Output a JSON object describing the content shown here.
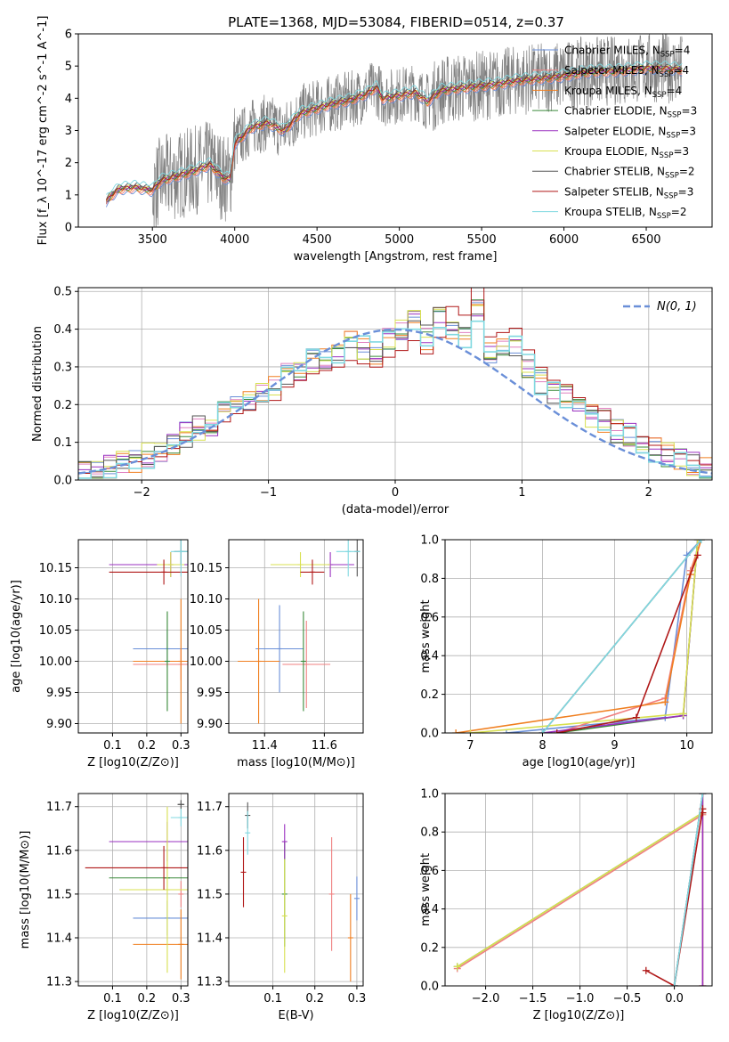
{
  "title": "PLATE=1368, MJD=53084, FIBERID=0514, z=0.37",
  "colors": {
    "Chabrier MILES": "#6a8fd8",
    "Salpeter MILES": "#f08080",
    "Kroupa MILES": "#f07f20",
    "Chabrier ELODIE": "#3a8a3a",
    "Salpeter ELODIE": "#9a30c0",
    "Kroupa ELODIE": "#d8e050",
    "Chabrier STELIB": "#555555",
    "Salpeter STELIB": "#b01818",
    "Kroupa STELIB": "#80d8e0",
    "data": "#808080",
    "gauss": "#6a8fd8",
    "salpeter_miles_hist": "#e080c0"
  },
  "chart_data": [
    {
      "id": "spectrum",
      "type": "line",
      "xlabel": "wavelength [Angstrom, rest frame]",
      "ylabel": "Flux [f_λ 10^-17 erg cm^-2 s^-1 A^-1]",
      "xlim": [
        3050,
        6900
      ],
      "ylim": [
        0,
        6
      ],
      "xticks": [
        3500,
        4000,
        4500,
        5000,
        5500,
        6000,
        6500
      ],
      "yticks": [
        0,
        1,
        2,
        3,
        4,
        5,
        6
      ],
      "legend_position": "right",
      "legend": [
        {
          "label": "Chabrier MILES, N_SSP=4",
          "color_key": "Chabrier MILES"
        },
        {
          "label": "Salpeter MILES, N_SSP=4",
          "color_key": "Salpeter MILES"
        },
        {
          "label": "Kroupa MILES, N_SSP=4",
          "color_key": "Kroupa MILES"
        },
        {
          "label": "Chabrier ELODIE, N_SSP=3",
          "color_key": "Chabrier ELODIE"
        },
        {
          "label": "Salpeter ELODIE, N_SSP=3",
          "color_key": "Salpeter ELODIE"
        },
        {
          "label": "Kroupa ELODIE, N_SSP=3",
          "color_key": "Kroupa ELODIE"
        },
        {
          "label": "Chabrier STELIB, N_SSP=2",
          "color_key": "Chabrier STELIB"
        },
        {
          "label": "Salpeter STELIB, N_SSP=3",
          "color_key": "Salpeter STELIB"
        },
        {
          "label": "Kroupa STELIB, N_SSP=2",
          "color_key": "Kroupa STELIB"
        }
      ],
      "model_shape": {
        "x": [
          3220,
          3250,
          3300,
          3400,
          3500,
          3550,
          3650,
          3750,
          3850,
          3930,
          3970,
          4000,
          4100,
          4200,
          4300,
          4400,
          4500,
          4600,
          4700,
          4800,
          4860,
          4900,
          5000,
          5100,
          5170,
          5250,
          5400,
          5500,
          5600,
          5700,
          5800,
          5900,
          6000,
          6100,
          6200,
          6300,
          6400,
          6500,
          6600,
          6720
        ],
        "y": [
          0.8,
          1.0,
          1.2,
          1.25,
          1.15,
          1.45,
          1.6,
          1.75,
          1.95,
          1.55,
          1.5,
          2.6,
          3.1,
          3.25,
          3.0,
          3.55,
          3.7,
          3.85,
          3.95,
          4.15,
          4.35,
          4.0,
          4.1,
          4.2,
          3.9,
          4.25,
          4.35,
          4.4,
          4.45,
          4.55,
          4.6,
          4.65,
          4.7,
          4.8,
          4.85,
          4.85,
          4.9,
          4.95,
          4.95,
          4.9
        ]
      },
      "data_range": [
        3220,
        6720
      ]
    },
    {
      "id": "residuals",
      "type": "line",
      "xlabel": "(data-model)/error",
      "ylabel": "Normed distribution",
      "xlim": [
        -2.5,
        2.5
      ],
      "ylim": [
        0,
        0.51
      ],
      "xticks": [
        -2,
        -1,
        0,
        1,
        2
      ],
      "yticks": [
        0.0,
        0.1,
        0.2,
        0.3,
        0.4,
        0.5
      ],
      "legend_label": "N(0, 1)",
      "legend_position": "top-right",
      "bin_edges": [
        -2.5,
        -2.4,
        -2.3,
        -2.2,
        -2.1,
        -2.0,
        -1.9,
        -1.8,
        -1.7,
        -1.6,
        -1.5,
        -1.4,
        -1.3,
        -1.2,
        -1.1,
        -1.0,
        -0.9,
        -0.8,
        -0.7,
        -0.6,
        -0.5,
        -0.4,
        -0.3,
        -0.2,
        -0.1,
        0.0,
        0.1,
        0.2,
        0.3,
        0.4,
        0.5,
        0.6,
        0.7,
        0.8,
        0.9,
        1.0,
        1.1,
        1.2,
        1.3,
        1.4,
        1.5,
        1.6,
        1.7,
        1.8,
        1.9,
        2.0,
        2.1,
        2.2,
        2.3,
        2.4,
        2.5
      ],
      "hist_base": [
        0.02,
        0.025,
        0.035,
        0.045,
        0.055,
        0.065,
        0.07,
        0.095,
        0.12,
        0.14,
        0.15,
        0.175,
        0.2,
        0.21,
        0.235,
        0.24,
        0.28,
        0.3,
        0.32,
        0.33,
        0.34,
        0.36,
        0.35,
        0.34,
        0.37,
        0.39,
        0.42,
        0.38,
        0.43,
        0.4,
        0.38,
        0.45,
        0.33,
        0.34,
        0.35,
        0.3,
        0.26,
        0.23,
        0.22,
        0.19,
        0.17,
        0.16,
        0.13,
        0.12,
        0.1,
        0.08,
        0.07,
        0.06,
        0.045,
        0.035
      ]
    },
    {
      "id": "age-vs-Z",
      "type": "scatter",
      "xlabel": "Z [log10(Z/Z⊙)]",
      "ylabel": "age  [log10(age/yr)]",
      "xlim": [
        0.0,
        0.32
      ],
      "ylim": [
        9.885,
        10.195
      ],
      "xticks": [
        0.1,
        0.2,
        0.3
      ],
      "yticks": [
        9.9,
        9.95,
        10.0,
        10.05,
        10.1,
        10.15
      ],
      "points": [
        {
          "key": "Chabrier MILES",
          "x": 0.26,
          "y": 10.02,
          "xerr": 0.1,
          "yerr": 0.03
        },
        {
          "key": "Salpeter MILES",
          "x": 0.3,
          "y": 9.995,
          "xerr": 0.14,
          "yerr": 0.025
        },
        {
          "key": "Kroupa MILES",
          "x": 0.3,
          "y": 10.0,
          "xerr": 0.14,
          "yerr": 0.1
        },
        {
          "key": "Chabrier ELODIE",
          "x": 0.26,
          "y": 10.0,
          "xerr": 0.0,
          "yerr": 0.08
        },
        {
          "key": "Salpeter ELODIE",
          "x": 0.27,
          "y": 10.155,
          "xerr": 0.18,
          "yerr": 0.02
        },
        {
          "key": "Kroupa ELODIE",
          "x": 0.27,
          "y": 10.155,
          "xerr": 0.04,
          "yerr": 0.02
        },
        {
          "key": "Chabrier STELIB",
          "x": 0.3,
          "y": 10.176,
          "xerr": 0.02,
          "yerr": 0.02
        },
        {
          "key": "Salpeter STELIB",
          "x": 0.25,
          "y": 10.143,
          "xerr": 0.16,
          "yerr": 0.02
        },
        {
          "key": "Kroupa STELIB",
          "x": 0.3,
          "y": 10.176,
          "xerr": 0.03,
          "yerr": 0.04
        }
      ]
    },
    {
      "id": "age-vs-mass",
      "type": "scatter",
      "xlabel": "mass [log10(M/M⊙)]",
      "ylabel": "",
      "xlim": [
        11.28,
        11.73
      ],
      "ylim": [
        9.885,
        10.195
      ],
      "xticks": [
        11.4,
        11.6
      ],
      "yticks": [
        9.9,
        9.95,
        10.0,
        10.05,
        10.1,
        10.15
      ],
      "points": [
        {
          "key": "Chabrier MILES",
          "x": 11.45,
          "y": 10.02,
          "xerr": 0.08,
          "yerr": 0.07
        },
        {
          "key": "Salpeter MILES",
          "x": 11.54,
          "y": 9.995,
          "xerr": 0.08,
          "yerr": 0.07
        },
        {
          "key": "Kroupa MILES",
          "x": 11.38,
          "y": 10.0,
          "xerr": 0.07,
          "yerr": 0.1
        },
        {
          "key": "Chabrier ELODIE",
          "x": 11.53,
          "y": 10.0,
          "xerr": 0.0,
          "yerr": 0.08
        },
        {
          "key": "Salpeter ELODIE",
          "x": 11.62,
          "y": 10.155,
          "xerr": 0.08,
          "yerr": 0.02
        },
        {
          "key": "Kroupa ELODIE",
          "x": 11.52,
          "y": 10.155,
          "xerr": 0.1,
          "yerr": 0.02
        },
        {
          "key": "Chabrier STELIB",
          "x": 11.71,
          "y": 10.176,
          "xerr": 0.0,
          "yerr": 0.04
        },
        {
          "key": "Salpeter STELIB",
          "x": 11.56,
          "y": 10.143,
          "xerr": 0.04,
          "yerr": 0.02
        },
        {
          "key": "Kroupa STELIB",
          "x": 11.68,
          "y": 10.176,
          "xerr": 0.04,
          "yerr": 0.04
        }
      ]
    },
    {
      "id": "massweight-vs-age",
      "type": "line",
      "xlabel": "age  [log10(age/yr)]",
      "ylabel": "mass weight",
      "xlim": [
        6.65,
        10.35
      ],
      "ylim": [
        0,
        1.0
      ],
      "xticks": [
        7,
        8,
        9,
        10
      ],
      "yticks": [
        0.0,
        0.2,
        0.4,
        0.6,
        0.8,
        1.0
      ],
      "series": [
        {
          "key": "Chabrier MILES",
          "x": [
            7.5,
            9.7,
            10.0,
            10.2
          ],
          "y": [
            0.0,
            0.08,
            0.92,
            1.0
          ]
        },
        {
          "key": "Salpeter MILES",
          "x": [
            8.2,
            9.7,
            10.05,
            10.2
          ],
          "y": [
            0.0,
            0.18,
            0.84,
            1.0
          ]
        },
        {
          "key": "Kroupa MILES",
          "x": [
            6.8,
            9.7,
            10.05,
            10.2
          ],
          "y": [
            0.0,
            0.16,
            0.82,
            1.0
          ]
        },
        {
          "key": "Chabrier ELODIE",
          "x": [
            8.2,
            9.95,
            10.15
          ],
          "y": [
            0.0,
            0.09,
            1.0
          ]
        },
        {
          "key": "Salpeter ELODIE",
          "x": [
            8.0,
            9.95,
            10.15
          ],
          "y": [
            0.0,
            0.09,
            1.0
          ]
        },
        {
          "key": "Kroupa ELODIE",
          "x": [
            7.0,
            9.95,
            10.15
          ],
          "y": [
            0.0,
            0.1,
            1.0
          ]
        },
        {
          "key": "Chabrier STELIB",
          "x": [
            8.0,
            10.2
          ],
          "y": [
            0.0,
            1.0
          ]
        },
        {
          "key": "Salpeter STELIB",
          "x": [
            8.2,
            9.3,
            10.15
          ],
          "y": [
            0.0,
            0.08,
            0.92
          ]
        },
        {
          "key": "Kroupa STELIB",
          "x": [
            8.0,
            10.2
          ],
          "y": [
            0.0,
            1.0
          ]
        }
      ]
    },
    {
      "id": "mass-vs-Z",
      "type": "scatter",
      "xlabel": "Z [log10(Z/Z⊙)]",
      "ylabel": "mass [log10(M/M⊙)]",
      "xlim": [
        0.0,
        0.32
      ],
      "ylim": [
        11.29,
        11.73
      ],
      "xticks": [
        0.1,
        0.2,
        0.3
      ],
      "yticks": [
        11.3,
        11.4,
        11.5,
        11.6,
        11.7
      ],
      "points": [
        {
          "key": "Chabrier MILES",
          "x": 0.26,
          "y": 11.445,
          "xerr": 0.1,
          "yerr": 0.04
        },
        {
          "key": "Salpeter MILES",
          "x": 0.3,
          "y": 11.5,
          "xerr": 0.0,
          "yerr": 0.03
        },
        {
          "key": "Kroupa MILES",
          "x": 0.3,
          "y": 11.385,
          "xerr": 0.14,
          "yerr": 0.08
        },
        {
          "key": "Chabrier ELODIE",
          "x": 0.26,
          "y": 11.537,
          "xerr": 0.17,
          "yerr": 0.0
        },
        {
          "key": "Salpeter ELODIE",
          "x": 0.26,
          "y": 11.62,
          "xerr": 0.17,
          "yerr": 0.045
        },
        {
          "key": "Kroupa ELODIE",
          "x": 0.26,
          "y": 11.51,
          "xerr": 0.14,
          "yerr": 0.19
        },
        {
          "key": "Chabrier STELIB",
          "x": 0.3,
          "y": 11.705,
          "xerr": 0.01,
          "yerr": 0.01
        },
        {
          "key": "Salpeter STELIB",
          "x": 0.25,
          "y": 11.56,
          "xerr": 0.23,
          "yerr": 0.05
        },
        {
          "key": "Kroupa STELIB",
          "x": 0.3,
          "y": 11.675,
          "xerr": 0.03,
          "yerr": 0.02
        }
      ]
    },
    {
      "id": "mass-vs-ebv",
      "type": "scatter",
      "xlabel": "E(B-V)",
      "ylabel": "",
      "xlim": [
        -0.005,
        0.315
      ],
      "ylim": [
        11.29,
        11.73
      ],
      "xticks": [
        0.1,
        0.2,
        0.3
      ],
      "yticks": [
        11.3,
        11.4,
        11.5,
        11.6,
        11.7
      ],
      "points": [
        {
          "key": "Chabrier MILES",
          "x": 0.3,
          "y": 11.49,
          "yerr": 0.05
        },
        {
          "key": "Salpeter MILES",
          "x": 0.24,
          "y": 11.5,
          "yerr": 0.13
        },
        {
          "key": "Kroupa MILES",
          "x": 0.285,
          "y": 11.4,
          "yerr": 0.1
        },
        {
          "key": "Chabrier ELODIE",
          "x": 0.128,
          "y": 11.5,
          "yerr": 0.12
        },
        {
          "key": "Salpeter ELODIE",
          "x": 0.128,
          "y": 11.62,
          "yerr": 0.04
        },
        {
          "key": "Kroupa ELODIE",
          "x": 0.128,
          "y": 11.45,
          "yerr": 0.13
        },
        {
          "key": "Chabrier STELIB",
          "x": 0.04,
          "y": 11.68,
          "yerr": 0.03
        },
        {
          "key": "Salpeter STELIB",
          "x": 0.03,
          "y": 11.55,
          "yerr": 0.08
        },
        {
          "key": "Kroupa STELIB",
          "x": 0.04,
          "y": 11.64,
          "yerr": 0.05
        }
      ]
    },
    {
      "id": "massweight-vs-Z",
      "type": "line",
      "xlabel": "Z [log10(Z/Z⊙)]",
      "ylabel": "mass weight",
      "xlim": [
        -2.43,
        0.4
      ],
      "ylim": [
        0,
        1.0
      ],
      "xticks": [
        -2.0,
        -1.5,
        -1.0,
        -0.5,
        0.0
      ],
      "yticks": [
        0.0,
        0.2,
        0.4,
        0.6,
        0.8,
        1.0
      ],
      "series": [
        {
          "key": "Chabrier MILES",
          "x": [
            0.0,
            0.3
          ],
          "y": [
            0.0,
            1.0
          ]
        },
        {
          "key": "Salpeter MILES",
          "x": [
            -2.3,
            0.3
          ],
          "y": [
            0.09,
            0.89
          ]
        },
        {
          "key": "Kroupa MILES",
          "x": [
            0.3,
            0.3
          ],
          "y": [
            0.0,
            1.0
          ]
        },
        {
          "key": "Chabrier ELODIE",
          "x": [
            -2.3,
            0.3
          ],
          "y": [
            0.1,
            0.9
          ]
        },
        {
          "key": "Salpeter ELODIE",
          "x": [
            0.3,
            0.3
          ],
          "y": [
            0.0,
            1.0
          ]
        },
        {
          "key": "Kroupa ELODIE",
          "x": [
            -2.3,
            0.3
          ],
          "y": [
            0.1,
            0.9
          ]
        },
        {
          "key": "Chabrier STELIB",
          "x": [
            0.0,
            0.3
          ],
          "y": [
            0.0,
            1.0
          ]
        },
        {
          "key": "Salpeter STELIB",
          "x": [
            -0.3,
            0.0,
            0.3,
            0.3
          ],
          "y": [
            0.08,
            0.0,
            0.92,
            0.9
          ]
        },
        {
          "key": "Kroupa STELIB",
          "x": [
            0.0,
            0.3
          ],
          "y": [
            0.0,
            1.0
          ]
        }
      ]
    }
  ]
}
